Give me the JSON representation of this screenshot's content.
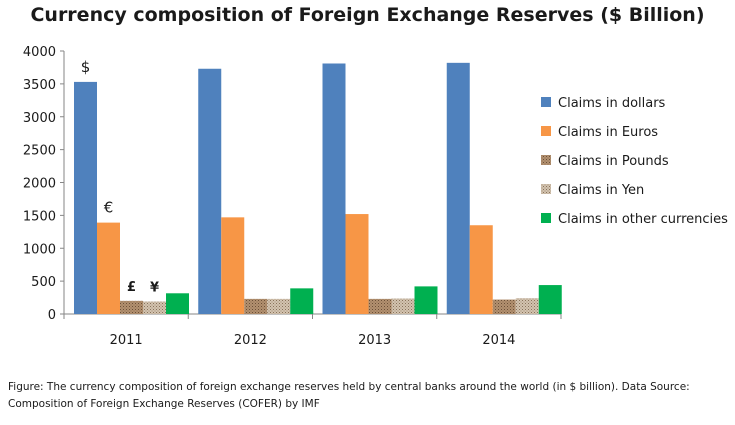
{
  "chart_data": {
    "type": "bar",
    "title": "Currency composition of Foreign Exchange Reserves ($ Billion)",
    "categories": [
      "2011",
      "2012",
      "2013",
      "2014"
    ],
    "series": [
      {
        "name": "Claims in dollars",
        "color": "#4f81bd",
        "values": [
          3530,
          3730,
          3810,
          3820
        ],
        "marker": "$"
      },
      {
        "name": "Claims in Euros",
        "color": "#f79646",
        "values": [
          1390,
          1470,
          1520,
          1350
        ],
        "marker": "€"
      },
      {
        "name": "Claims in Pounds",
        "color": "#b2906f",
        "pattern": "dots",
        "values": [
          200,
          230,
          230,
          220
        ],
        "marker": "£"
      },
      {
        "name": "Claims in Yen",
        "color": "#c9b7a1",
        "pattern": "dots",
        "values": [
          190,
          230,
          235,
          240
        ],
        "marker": "¥"
      },
      {
        "name": "Claims in other currencies",
        "color": "#00b050",
        "values": [
          315,
          390,
          420,
          440
        ],
        "marker": ""
      }
    ],
    "ylim": [
      0,
      4000
    ],
    "yticks": [
      0,
      500,
      1000,
      1500,
      2000,
      2500,
      3000,
      3500,
      4000
    ],
    "xlabel": "",
    "ylabel": "",
    "grid": false,
    "legend": "right"
  },
  "caption": "Figure: The currency composition of foreign exchange reserves held by central banks around the world (in $ billion). Data Source: Composition of Foreign Exchange Reserves (COFER) by IMF"
}
